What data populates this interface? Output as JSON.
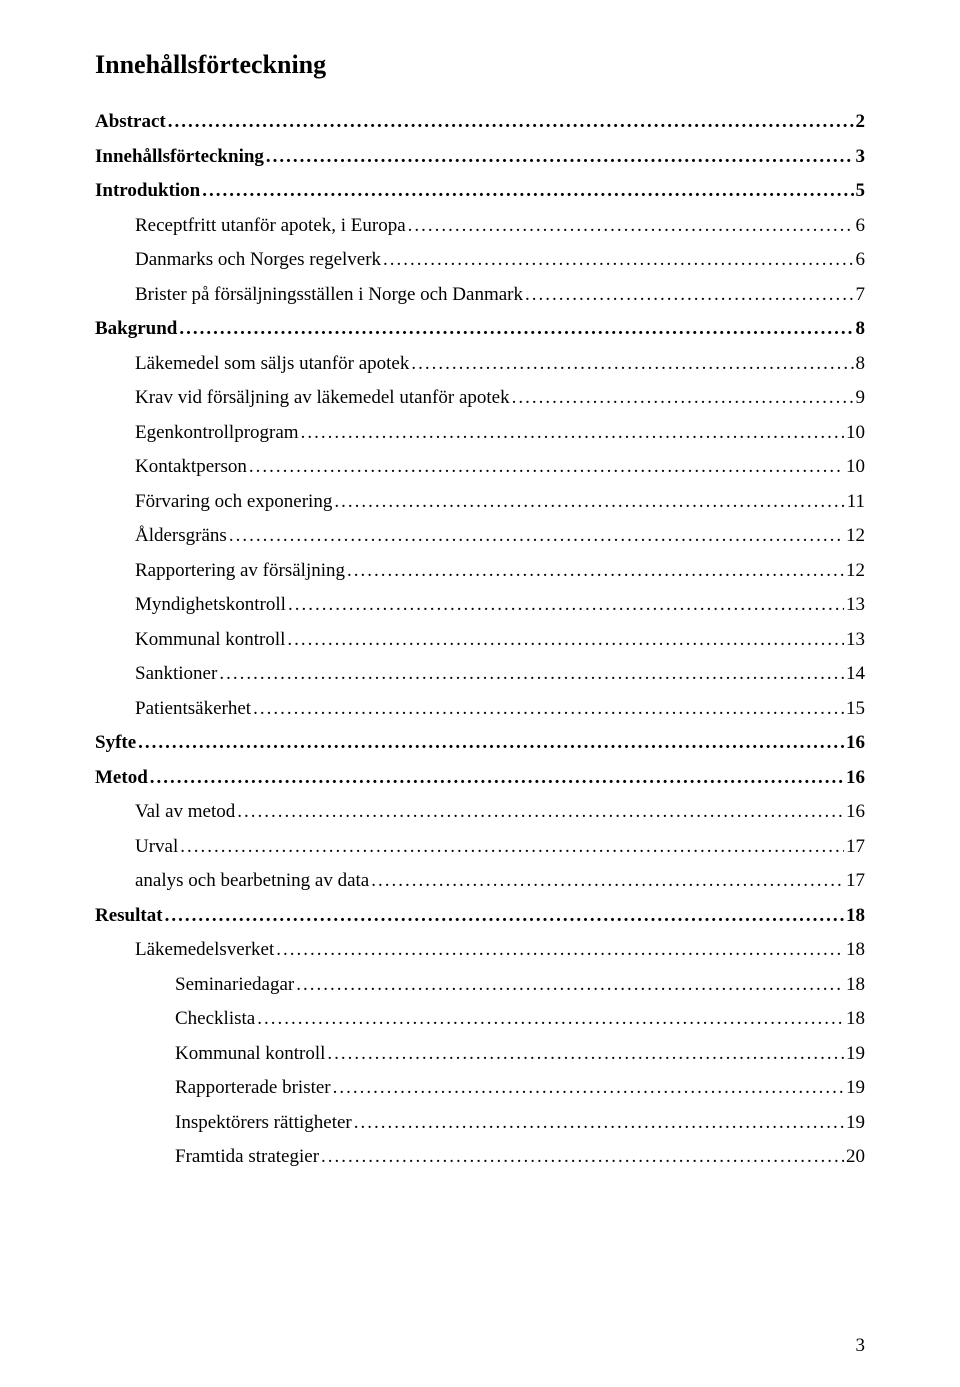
{
  "title": "Innehållsförteckning",
  "page_number": "3",
  "toc": [
    {
      "label": "Abstract",
      "page": "2",
      "level": 0
    },
    {
      "label": "Innehållsförteckning",
      "page": "3",
      "level": 0
    },
    {
      "label": "Introduktion",
      "page": "5",
      "level": 0
    },
    {
      "label": "Receptfritt utanför apotek, i Europa",
      "page": "6",
      "level": 1
    },
    {
      "label": "Danmarks och Norges regelverk",
      "page": "6",
      "level": 1
    },
    {
      "label": "Brister på försäljningsställen i Norge och Danmark",
      "page": "7",
      "level": 1
    },
    {
      "label": "Bakgrund",
      "page": "8",
      "level": 0
    },
    {
      "label": "Läkemedel som säljs utanför apotek",
      "page": "8",
      "level": 1
    },
    {
      "label": "Krav vid försäljning av läkemedel utanför apotek",
      "page": "9",
      "level": 1
    },
    {
      "label": "Egenkontrollprogram",
      "page": "10",
      "level": 1
    },
    {
      "label": "Kontaktperson",
      "page": "10",
      "level": 1
    },
    {
      "label": "Förvaring och exponering",
      "page": "11",
      "level": 1
    },
    {
      "label": "Åldersgräns",
      "page": "12",
      "level": 1
    },
    {
      "label": "Rapportering av försäljning",
      "page": "12",
      "level": 1
    },
    {
      "label": "Myndighetskontroll",
      "page": "13",
      "level": 1
    },
    {
      "label": "Kommunal kontroll",
      "page": "13",
      "level": 1
    },
    {
      "label": "Sanktioner",
      "page": "14",
      "level": 1
    },
    {
      "label": "Patientsäkerhet",
      "page": "15",
      "level": 1
    },
    {
      "label": "Syfte",
      "page": "16",
      "level": 0
    },
    {
      "label": "Metod",
      "page": "16",
      "level": 0
    },
    {
      "label": "Val av metod",
      "page": "16",
      "level": 1
    },
    {
      "label": "Urval",
      "page": "17",
      "level": 1
    },
    {
      "label": "analys och bearbetning av data",
      "page": "17",
      "level": 1
    },
    {
      "label": "Resultat",
      "page": "18",
      "level": 0
    },
    {
      "label": "Läkemedelsverket",
      "page": "18",
      "level": 1
    },
    {
      "label": "Seminariedagar",
      "page": "18",
      "level": 2
    },
    {
      "label": "Checklista",
      "page": "18",
      "level": 2
    },
    {
      "label": "Kommunal kontroll",
      "page": "19",
      "level": 2
    },
    {
      "label": "Rapporterade brister",
      "page": "19",
      "level": 2
    },
    {
      "label": "Inspektörers rättigheter",
      "page": "19",
      "level": 2
    },
    {
      "label": "Framtida strategier",
      "page": "20",
      "level": 2
    }
  ]
}
